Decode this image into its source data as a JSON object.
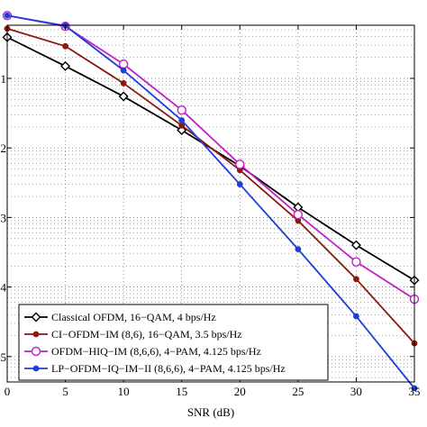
{
  "chart_data": {
    "type": "line",
    "xlabel": "SNR (dB)",
    "ylabel": "",
    "x_ticks": [
      0,
      5,
      10,
      15,
      20,
      25,
      30,
      35
    ],
    "x_tick_labels": [
      "0",
      "5",
      "10",
      "15",
      "20",
      "25",
      "30",
      "35"
    ],
    "xlim": [
      0,
      35
    ],
    "y_scale": "log",
    "ylim": [
      1e-05,
      1
    ],
    "y_decades_visible": [
      -1,
      -2,
      -3,
      -4,
      -5
    ],
    "y_tick_labels": [
      "-1",
      "-2",
      "-3",
      "-4",
      "-5"
    ],
    "grid": true,
    "legend_position": "bottom-left",
    "series": [
      {
        "name": "Classical OFDM, 16−QAM, 4 bps/Hz",
        "color": "#000000",
        "marker": "diamond",
        "x": [
          0,
          5,
          10,
          15,
          20,
          25,
          30,
          35
        ],
        "y": [
          0.39,
          0.15,
          0.055,
          0.018,
          0.0055,
          0.0014,
          0.0004,
          0.000125
        ]
      },
      {
        "name": "CI−OFDM−IM (8,6), 16−QAM, 3.5 bps/Hz",
        "color": "#8b1a0e",
        "marker": "dot",
        "x": [
          0,
          5,
          10,
          15,
          20,
          25,
          30,
          35
        ],
        "y": [
          0.52,
          0.29,
          0.085,
          0.021,
          0.0048,
          0.0009,
          0.00013,
          1.55e-05
        ]
      },
      {
        "name": "OFDM−HIQ−IM (8,6,6), 4−PAM, 4.125 bps/Hz",
        "color": "#c020c8",
        "marker": "circle",
        "x": [
          0,
          5,
          10,
          15,
          20,
          25,
          30,
          35
        ],
        "y": [
          0.8,
          0.56,
          0.16,
          0.035,
          0.0058,
          0.0011,
          0.00023,
          6.7e-05
        ]
      },
      {
        "name": "LP−OFDM−IQ−IM−II (8,6,6), 4−PAM, 4.125 bps/Hz",
        "color": "#1f3fd6",
        "marker": "dot",
        "x": [
          0,
          5,
          10,
          15,
          20,
          25,
          30,
          35
        ],
        "y": [
          0.8,
          0.57,
          0.13,
          0.025,
          0.003,
          0.00035,
          3.8e-05,
          3.5e-06
        ]
      }
    ]
  }
}
